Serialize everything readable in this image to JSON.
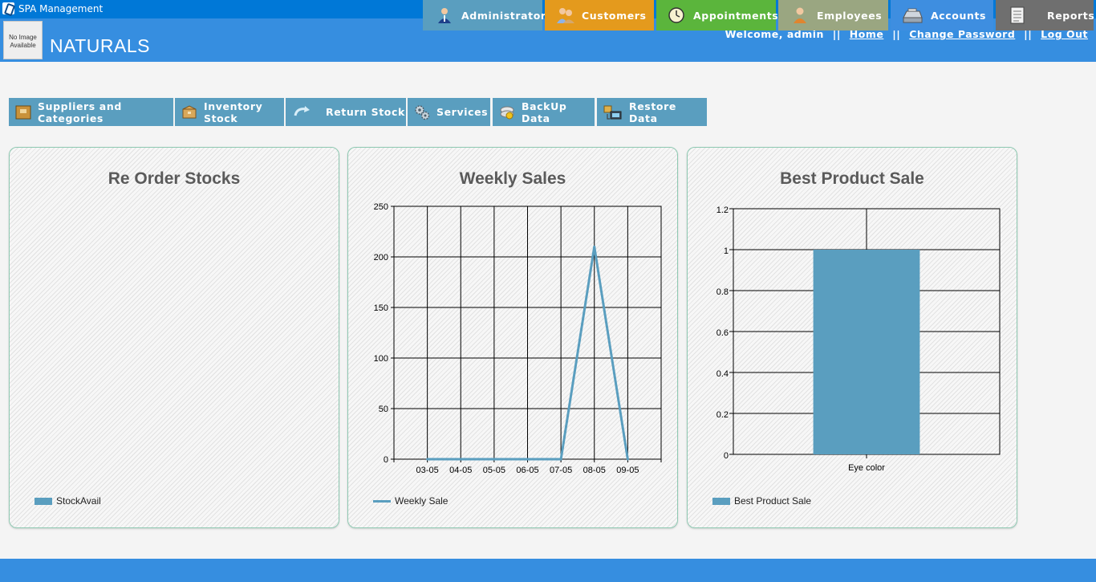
{
  "window": {
    "title": "SPA Management",
    "controls": {
      "minimize": "—",
      "restore": "❐",
      "close": "✕"
    }
  },
  "header": {
    "logo_text": "No Image Available",
    "brand": "NATURALS",
    "welcome": "Welcome, admin",
    "separator": "||",
    "links": {
      "home": "Home",
      "change_password": "Change Password",
      "logout": "Log Out"
    }
  },
  "nav": {
    "main": [
      {
        "label": "Administrator",
        "icon": "administrator-icon",
        "color": "#5a9ebf"
      },
      {
        "label": "Customers",
        "icon": "customers-icon",
        "color": "#e49a1d"
      },
      {
        "label": "Appointments",
        "icon": "clock-icon",
        "color": "#5bb53c"
      },
      {
        "label": "Employees",
        "icon": "employees-icon",
        "color": "#9aa681"
      },
      {
        "label": "Accounts",
        "icon": "accounts-icon",
        "color": "#3e8ee0"
      },
      {
        "label": "Reports",
        "icon": "reports-icon",
        "color": "#6f6f6f"
      }
    ],
    "sub": [
      {
        "label": "Suppliers and Categories",
        "icon": "suppliers-icon"
      },
      {
        "label": "Inventory Stock",
        "icon": "inventory-box-icon"
      },
      {
        "label": "Return Stock",
        "icon": "return-arrow-icon"
      },
      {
        "label": "Services",
        "icon": "gears-icon"
      },
      {
        "label": "BackUp Data",
        "icon": "backup-disc-icon"
      },
      {
        "label": "Restore Data",
        "icon": "restore-computer-icon"
      }
    ]
  },
  "panels": {
    "reorder": {
      "title": "Re Order Stocks",
      "legend": "StockAvail"
    },
    "weekly": {
      "title": "Weekly Sales",
      "legend": "Weekly Sale"
    },
    "best": {
      "title": "Best Product Sale",
      "legend": "Best Product Sale"
    }
  },
  "chart_data": [
    {
      "type": "bar",
      "title": "Re Order Stocks",
      "categories": [],
      "series": [
        {
          "name": "StockAvail",
          "values": []
        }
      ]
    },
    {
      "type": "line",
      "title": "Weekly Sales",
      "x": [
        "03-05",
        "04-05",
        "05-05",
        "06-05",
        "07-05",
        "08-05",
        "09-05"
      ],
      "series": [
        {
          "name": "Weekly Sale",
          "values": [
            0,
            0,
            0,
            0,
            0,
            210,
            0
          ]
        }
      ],
      "ylim": [
        0,
        250
      ],
      "yticks": [
        0,
        50,
        100,
        150,
        200,
        250
      ],
      "grid": true,
      "legend": "bottom-left",
      "color": "#5a9ebf"
    },
    {
      "type": "bar",
      "title": "Best Product Sale",
      "categories": [
        "Eye color"
      ],
      "series": [
        {
          "name": "Best Product Sale",
          "values": [
            1
          ]
        }
      ],
      "ylim": [
        0,
        1.2
      ],
      "yticks": [
        0,
        0.2,
        0.4,
        0.6,
        0.8,
        1,
        1.2
      ],
      "grid": true,
      "legend": "bottom-left",
      "color": "#5a9ebf"
    }
  ]
}
